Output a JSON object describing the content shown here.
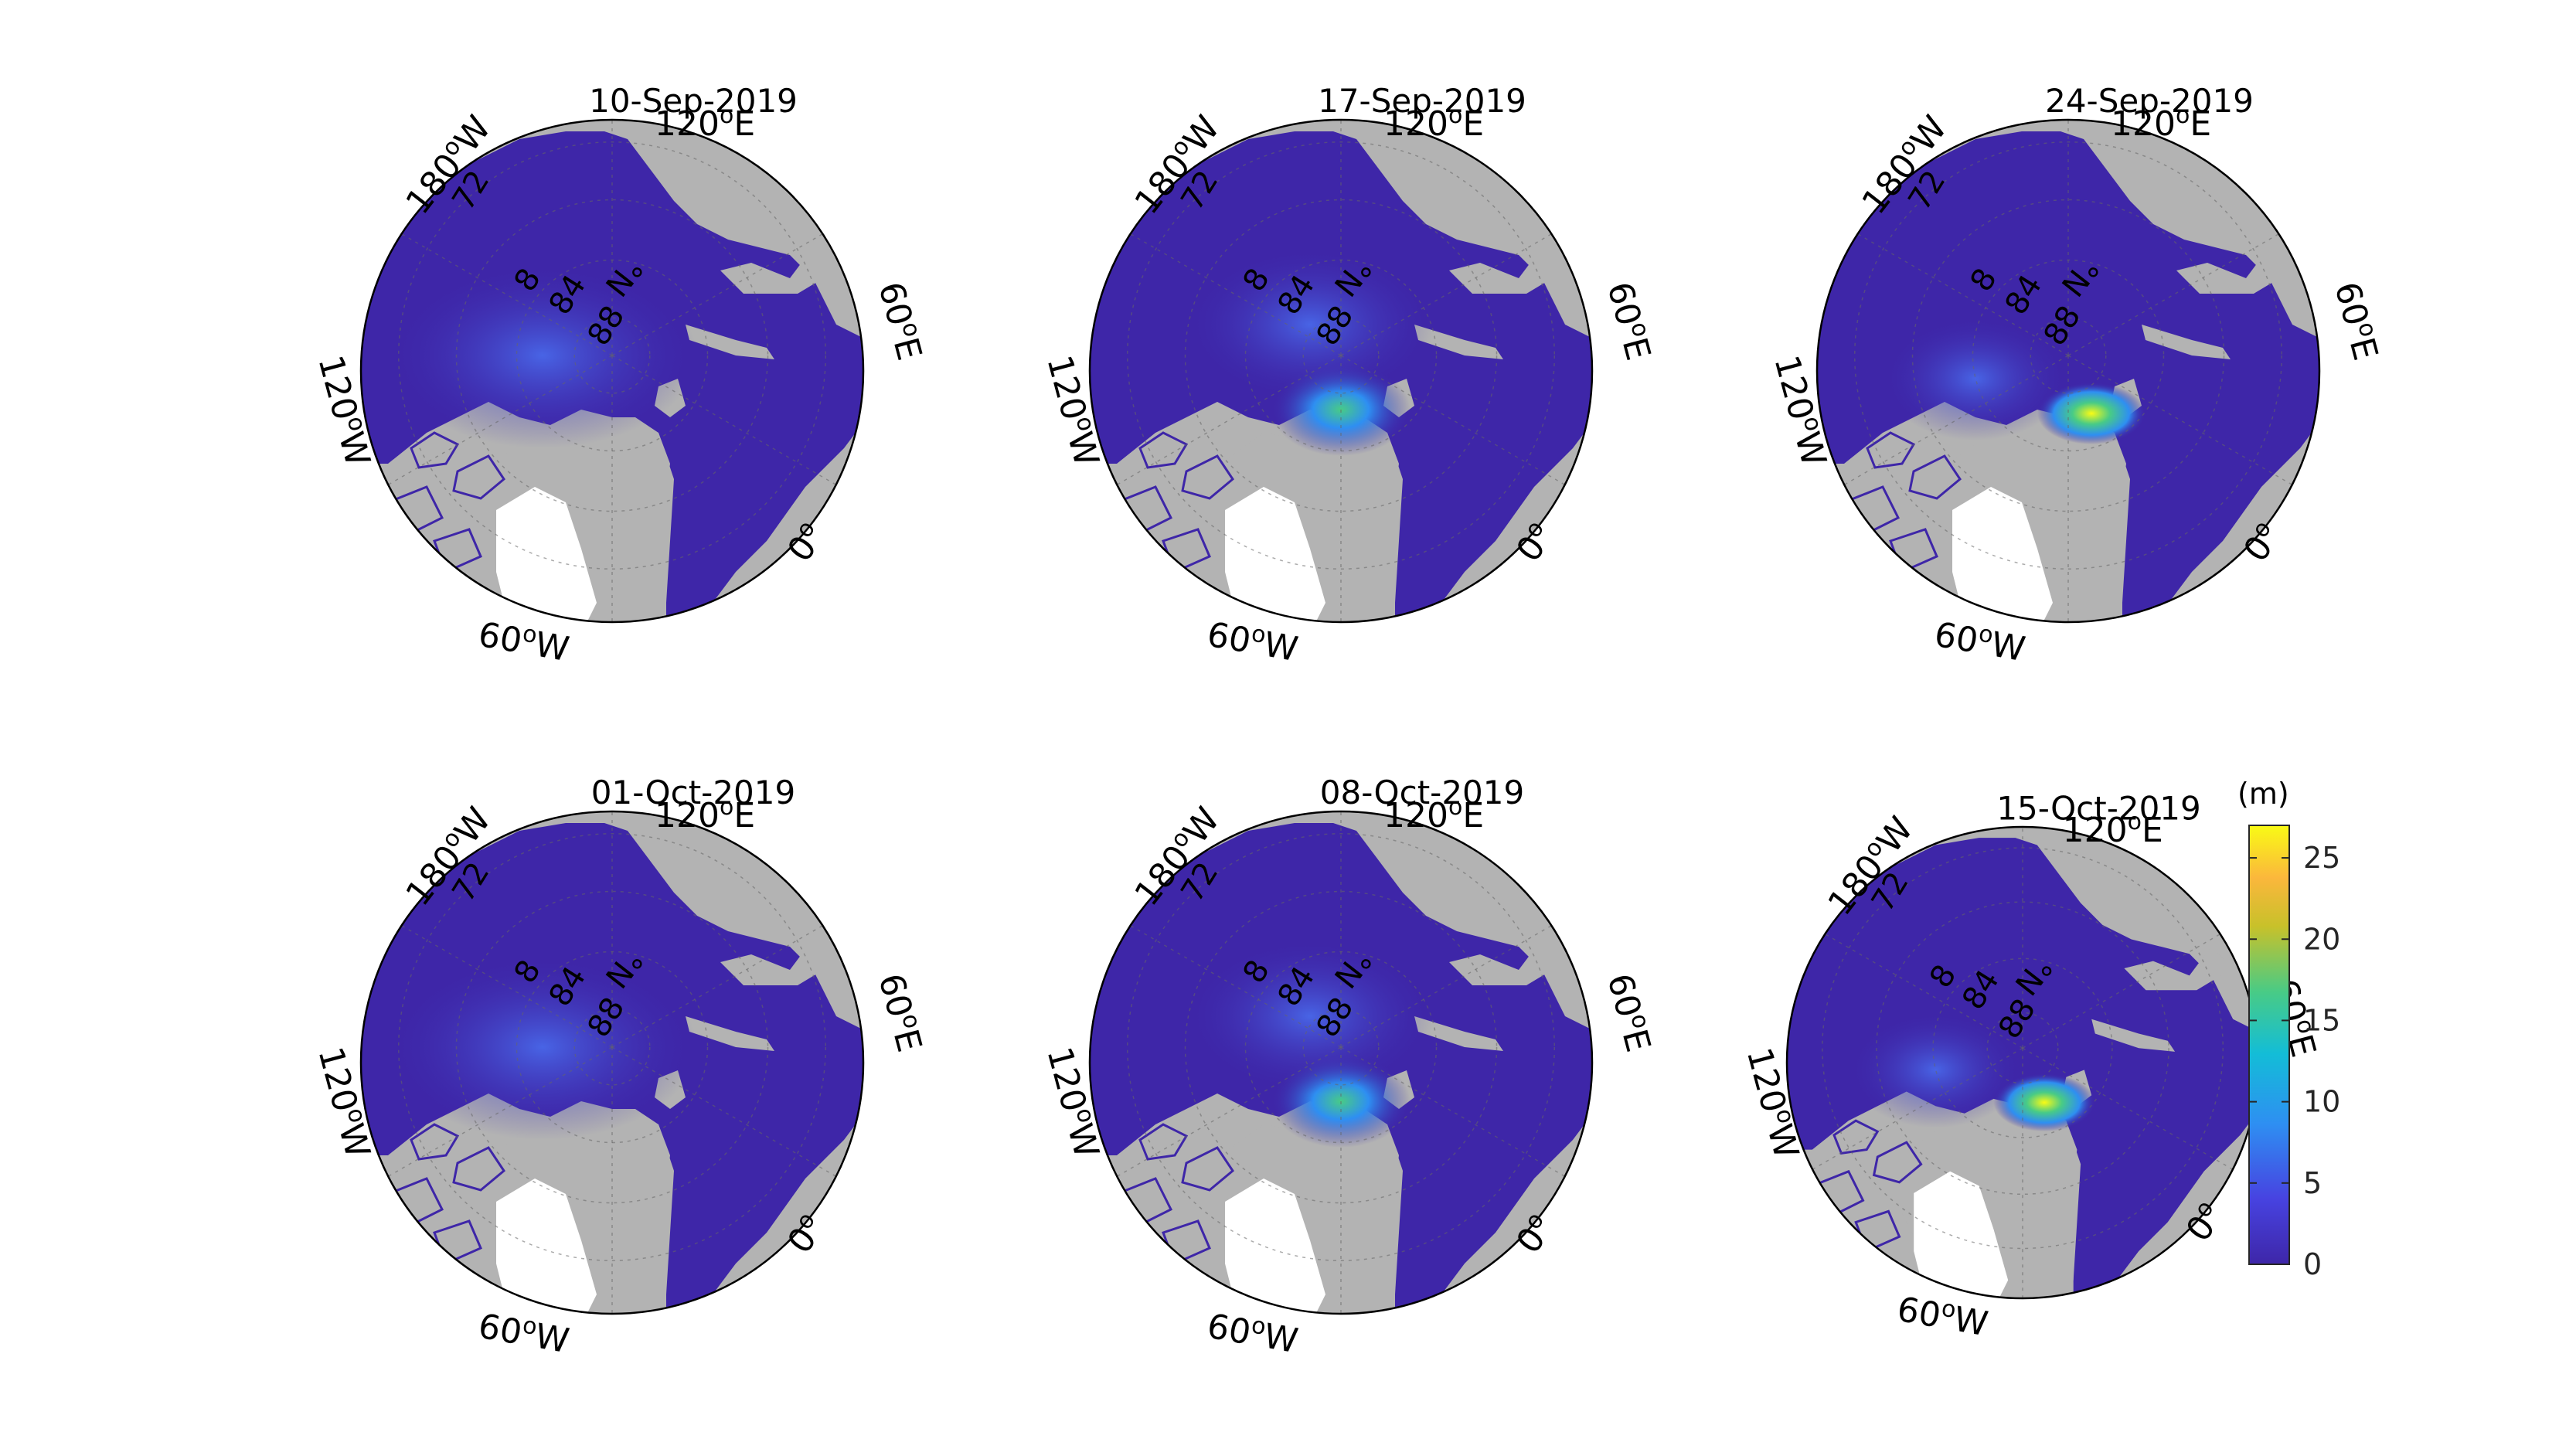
{
  "figure": {
    "panels": [
      {
        "title": "10-Sep-2019"
      },
      {
        "title": "17-Sep-2019"
      },
      {
        "title": "24-Sep-2019"
      },
      {
        "title": "01-Oct-2019"
      },
      {
        "title": "08-Oct-2019"
      },
      {
        "title": "15-Oct-2019"
      }
    ],
    "longitude_labels": {
      "lon_180w": "180",
      "lon_120e": "120",
      "lon_60e": "60",
      "lon_0": "0",
      "lon_60w": "60",
      "lon_120w": "120"
    },
    "longitude_suffixes": {
      "w": "W",
      "e": "E",
      "deg": "o"
    },
    "latitude_labels": {
      "lat_72": "72",
      "lat_80": "8",
      "lat_84": "84",
      "lat_88": "88",
      "n": "N"
    },
    "colorbar": {
      "unit": "(m)",
      "ticks": [
        "0",
        "5",
        "10",
        "15",
        "20",
        "25"
      ],
      "range": [
        0,
        27
      ]
    },
    "colors": {
      "ocean": "#3e26a8",
      "land": "#b3b3b3",
      "greenland_ice": "#ffffff",
      "graticule": "#666666",
      "colormap": [
        "#3e26a8",
        "#4743e1",
        "#2e8ff2",
        "#13bdd7",
        "#48cb86",
        "#c8c12a",
        "#fbb73c",
        "#f9fb15"
      ]
    }
  }
}
